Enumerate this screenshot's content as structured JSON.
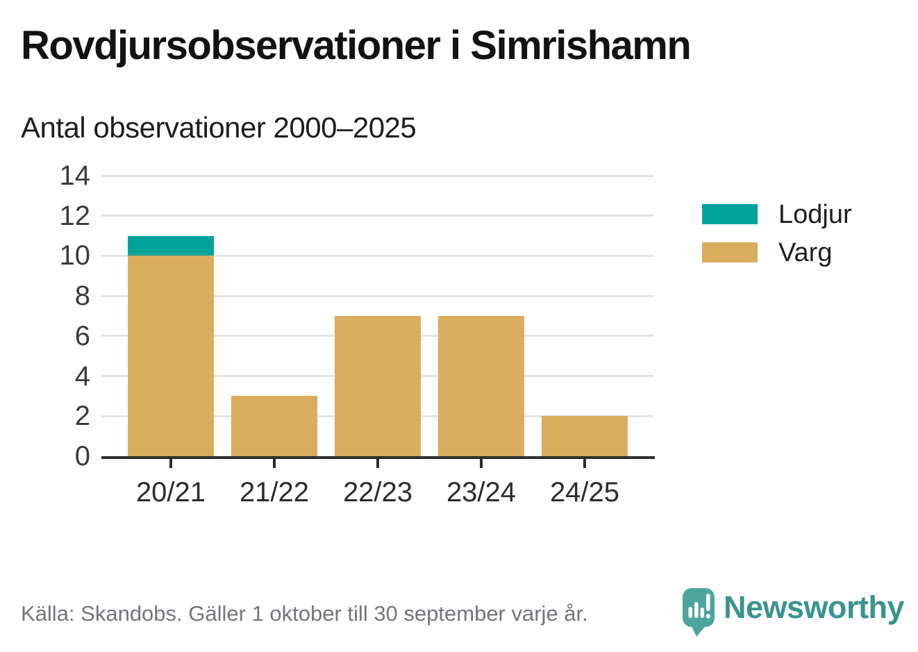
{
  "chart_data": {
    "type": "bar",
    "stacked": true,
    "title": "Rovdjursobservationer i Simrishamn",
    "subtitle": "Antal observationer 2000–2025",
    "categories": [
      "20/21",
      "21/22",
      "22/23",
      "23/24",
      "24/25"
    ],
    "series": [
      {
        "name": "Lodjur",
        "color": "#00a39a",
        "values": [
          1,
          0,
          0,
          0,
          0
        ]
      },
      {
        "name": "Varg",
        "color": "#d9ad5d",
        "values": [
          10,
          3,
          7,
          7,
          2
        ]
      }
    ],
    "stack_order_bottom_to_top": [
      "Varg",
      "Lodjur"
    ],
    "totals": [
      11,
      3,
      7,
      7,
      2
    ],
    "xlabel": "",
    "ylabel": "",
    "ylim": [
      0,
      14
    ],
    "y_ticks": [
      0,
      2,
      4,
      6,
      8,
      10,
      12,
      14
    ],
    "grid": "horizontal",
    "legend_position": "right"
  },
  "footer": {
    "source_note": "Källa: Skandobs. Gäller 1 oktober till 30 september varje år."
  },
  "branding": {
    "wordmark": "Newsworthy",
    "logo_icon": "newsworthy-speech-bubble-chart-icon",
    "wordmark_color": "#3a938d",
    "logo_color": "#4ba59d"
  },
  "colors": {
    "axis": "#2d2d2d",
    "grid": "#e3e3e3",
    "title_text": "#121212",
    "tick_label_text": "#3a3a3a",
    "footer_text": "#74757b",
    "lodjur": "#00a39a",
    "varg": "#d9ad5d"
  }
}
